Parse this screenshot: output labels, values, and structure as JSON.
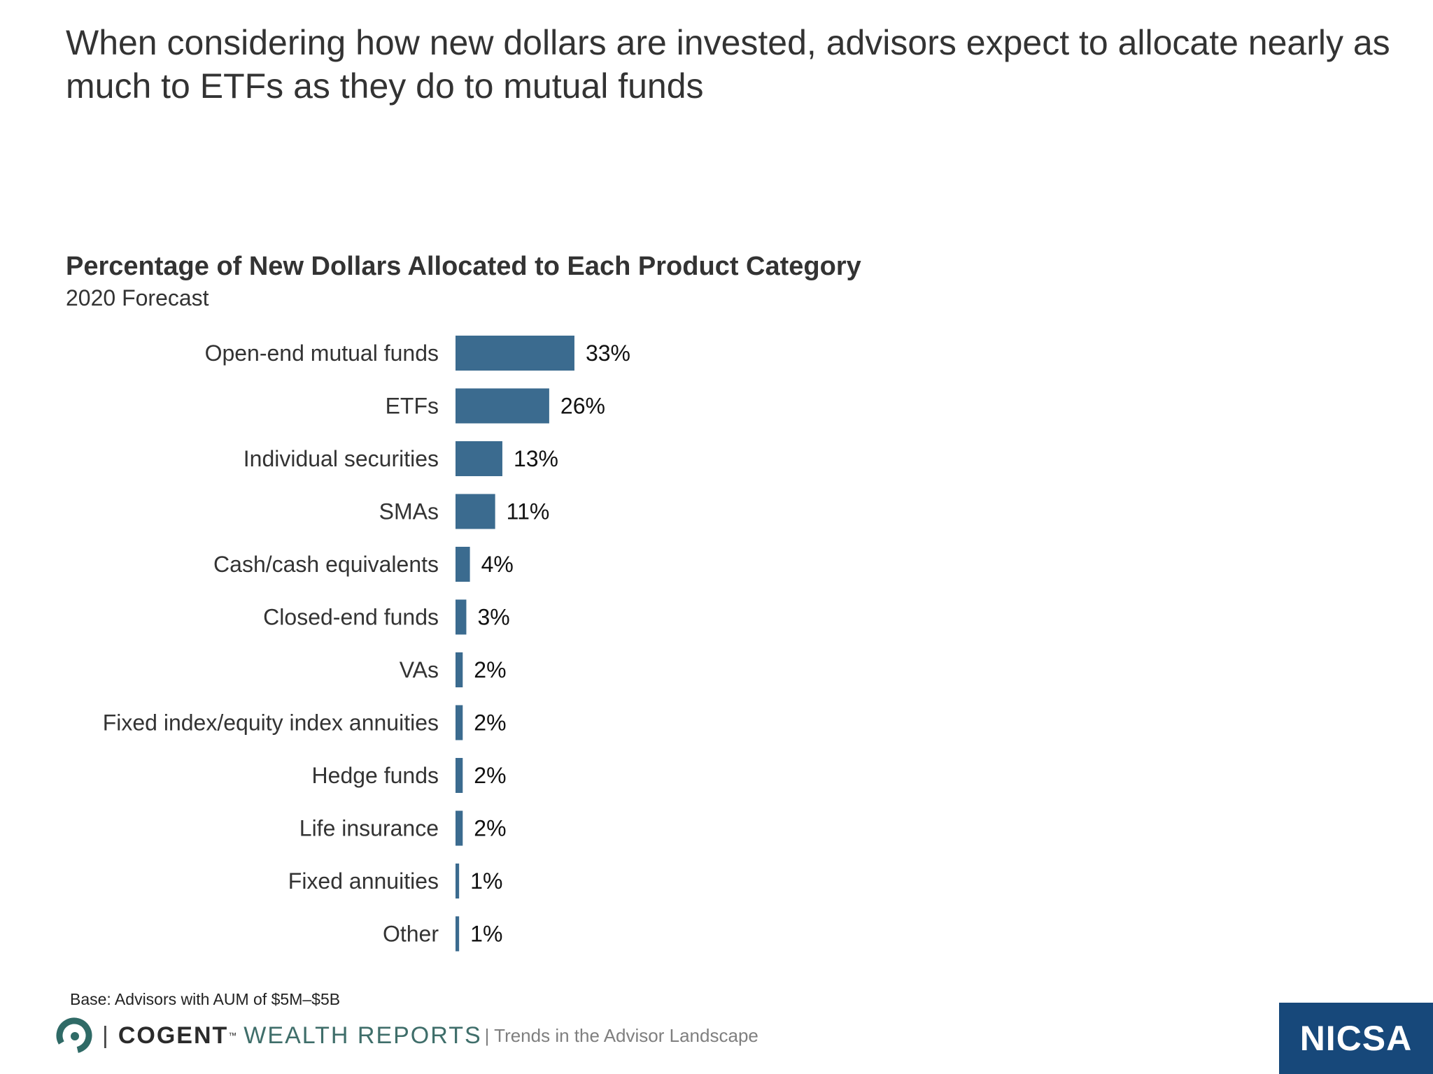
{
  "headline": "When considering how new dollars are invested, advisors expect to allocate nearly as much to ETFs as they do to mutual funds",
  "chart_data": {
    "type": "bar",
    "orientation": "horizontal",
    "title": "Percentage of New Dollars Allocated to Each Product Category",
    "subtitle": "2020 Forecast",
    "categories": [
      "Open-end mutual funds",
      "ETFs",
      "Individual securities",
      "SMAs",
      "Cash/cash equivalents",
      "Closed-end funds",
      "VAs",
      "Fixed index/equity index annuities",
      "Hedge funds",
      "Life insurance",
      "Fixed annuities",
      "Other"
    ],
    "values": [
      33,
      26,
      13,
      11,
      4,
      3,
      2,
      2,
      2,
      2,
      1,
      1
    ],
    "value_labels": [
      "33%",
      "26%",
      "13%",
      "11%",
      "4%",
      "3%",
      "2%",
      "2%",
      "2%",
      "2%",
      "1%",
      "1%"
    ],
    "bar_color": "#3b6b8f",
    "grid": false,
    "legend": "none"
  },
  "base_note": "Base: Advisors with AUM of $5M–$5B",
  "footer": {
    "separator": "|",
    "brand_cogent": "COGENT",
    "brand_tm": "™",
    "brand_wealth": "WEALTH REPORTS",
    "tagline": "| Trends in the Advisor Landscape",
    "logo_icon": "cogent-swirl-icon",
    "logo_color": "#2f6a66"
  },
  "nicsa": {
    "label": "NICSA",
    "background": "#17487a"
  }
}
